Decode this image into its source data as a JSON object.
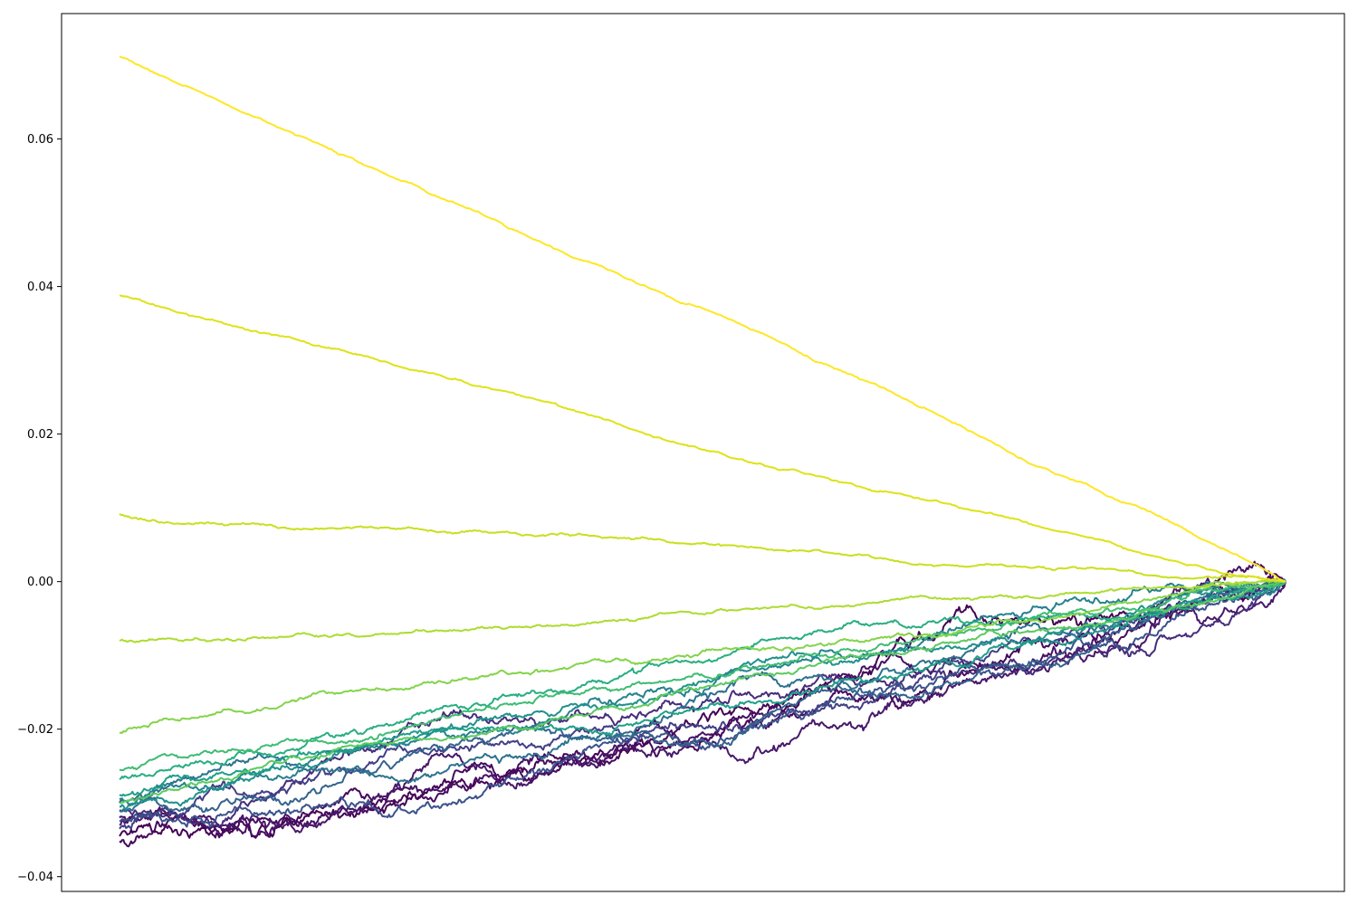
{
  "chart_data": {
    "type": "line",
    "title": "",
    "xlabel": "",
    "ylabel": "",
    "x_ticks_visible": false,
    "xlim": [
      0,
      1
    ],
    "ylim": [
      -0.042,
      0.077
    ],
    "yticks": [
      -0.04,
      -0.02,
      0.0,
      0.02,
      0.04,
      0.06
    ],
    "ytick_labels": [
      "−0.04",
      "−0.02",
      "0.00",
      "0.02",
      "0.04",
      "0.06"
    ],
    "grid": false,
    "legend": "none",
    "colormap": "viridis",
    "series": [
      {
        "color": "#440154",
        "start": -0.0345,
        "seed": 11,
        "noise": 1.6
      },
      {
        "color": "#46085c",
        "start": -0.0352,
        "seed": 12,
        "noise": 1.6
      },
      {
        "color": "#471063",
        "start": -0.032,
        "seed": 13,
        "noise": 1.5
      },
      {
        "color": "#48186a",
        "start": -0.033,
        "seed": 14,
        "noise": 1.4
      },
      {
        "color": "#472d7b",
        "start": -0.031,
        "seed": 15,
        "noise": 1.3
      },
      {
        "color": "#424086",
        "start": -0.0335,
        "seed": 16,
        "noise": 1.2
      },
      {
        "color": "#3b528b",
        "start": -0.0325,
        "seed": 17,
        "noise": 1.2
      },
      {
        "color": "#33638d",
        "start": -0.03,
        "seed": 18,
        "noise": 1.1
      },
      {
        "color": "#2c728e",
        "start": -0.031,
        "seed": 19,
        "noise": 1.0
      },
      {
        "color": "#26828e",
        "start": -0.0295,
        "seed": 20,
        "noise": 0.9
      },
      {
        "color": "#21918c",
        "start": -0.0305,
        "seed": 21,
        "noise": 0.9
      },
      {
        "color": "#1fa088",
        "start": -0.029,
        "seed": 22,
        "noise": 0.8
      },
      {
        "color": "#28ae80",
        "start": -0.0268,
        "seed": 23,
        "noise": 0.7
      },
      {
        "color": "#3fbc73",
        "start": -0.0255,
        "seed": 24,
        "noise": 0.6
      },
      {
        "color": "#5ec962",
        "start": -0.03,
        "seed": 25,
        "noise": 0.6
      },
      {
        "color": "#84d44b",
        "start": -0.0205,
        "seed": 26,
        "noise": 0.5
      },
      {
        "color": "#addc30",
        "start": -0.008,
        "seed": 27,
        "noise": 0.35
      },
      {
        "color": "#c8e020",
        "start": 0.0092,
        "seed": 28,
        "noise": 0.3
      },
      {
        "color": "#dde318",
        "start": 0.0388,
        "seed": 29,
        "noise": 0.25
      },
      {
        "color": "#fde725",
        "start": 0.0712,
        "seed": 30,
        "noise": 0.25
      }
    ]
  }
}
